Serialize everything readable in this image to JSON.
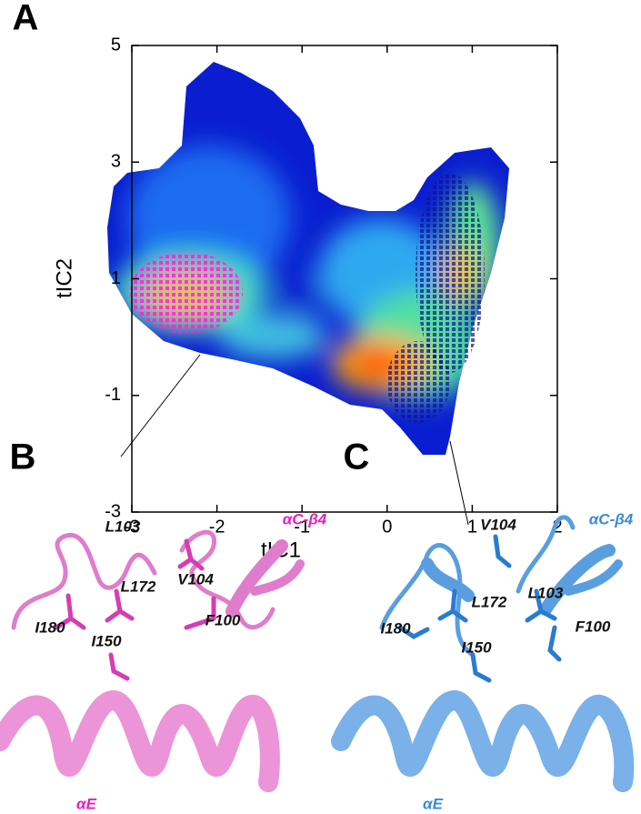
{
  "chart_data": {
    "type": "density",
    "xlabel": "tIC1",
    "ylabel": "tIC2",
    "xlim": [
      -3,
      2
    ],
    "ylim": [
      -3,
      5
    ],
    "xticks": [
      -3,
      -2,
      -1,
      0,
      1,
      2
    ],
    "yticks": [
      -3,
      -1,
      1,
      3,
      5
    ]
  },
  "panels": {
    "A": {
      "label": "A"
    },
    "B": {
      "label": "B",
      "labels": [
        "L103",
        "αC-β4",
        "V104",
        "L172",
        "I180",
        "F100",
        "I150",
        "αE"
      ]
    },
    "C": {
      "label": "C",
      "labels": [
        "V104",
        "αC-β4",
        "L103",
        "L172",
        "I180",
        "F100",
        "I150",
        "αE"
      ]
    }
  }
}
